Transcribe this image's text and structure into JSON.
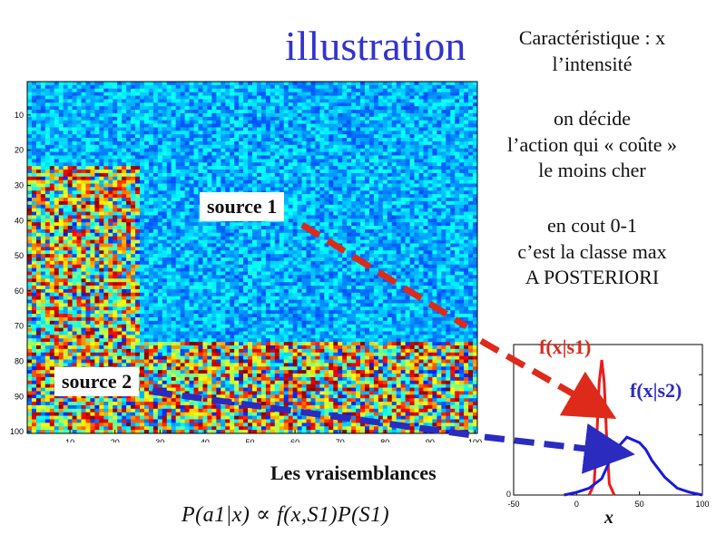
{
  "title": "illustration",
  "right_text": {
    "line1": "Caractéristique : x",
    "line2": "l’intensité",
    "line3": "on décide",
    "line4": "l’action qui « coûte »",
    "line5": "le moins cher",
    "line6": "en cout 0-1",
    "line7": "c’est la classe max",
    "line8": "A POSTERIORI"
  },
  "heatmap": {
    "x_ticks": [
      "10",
      "20",
      "30",
      "40",
      "50",
      "60",
      "70",
      "80",
      "90",
      "100"
    ],
    "y_ticks": [
      "10",
      "20",
      "30",
      "40",
      "50",
      "60",
      "70",
      "80",
      "90",
      "100"
    ],
    "colormap": "jet"
  },
  "labels": {
    "source1": "source 1",
    "source2": "source 2",
    "vraisemblances": "Les vraisemblances"
  },
  "formula": {
    "text": "P(a1|x) ∝ f(x,S1)P(S1)"
  },
  "density_plot": {
    "x_ticks": [
      "-50",
      "0",
      "50",
      "100"
    ],
    "y_tick": "0",
    "xlabel": "x",
    "f1_label": "f(x|s1)",
    "f2_label": "f(x|s2)"
  },
  "colors": {
    "red": "#dd2a1b",
    "blue": "#2b2bc0",
    "title_blue": "#3333cc"
  },
  "chart_data": {
    "type": "line",
    "xlim": [
      -50,
      100
    ],
    "ylim": [
      0,
      1
    ],
    "series": [
      {
        "name": "f(x|s1)",
        "x": [
          10,
          14,
          16,
          18,
          20,
          22,
          24,
          26,
          30
        ],
        "y": [
          0.0,
          0.08,
          0.4,
          0.82,
          0.98,
          0.82,
          0.4,
          0.08,
          0.0
        ]
      },
      {
        "name": "f(x|s2)",
        "x": [
          -10,
          0,
          10,
          20,
          30,
          40,
          50,
          55,
          60,
          70,
          80,
          90,
          100
        ],
        "y": [
          0.0,
          0.02,
          0.05,
          0.12,
          0.32,
          0.42,
          0.38,
          0.33,
          0.25,
          0.13,
          0.05,
          0.02,
          0.0
        ]
      }
    ]
  }
}
